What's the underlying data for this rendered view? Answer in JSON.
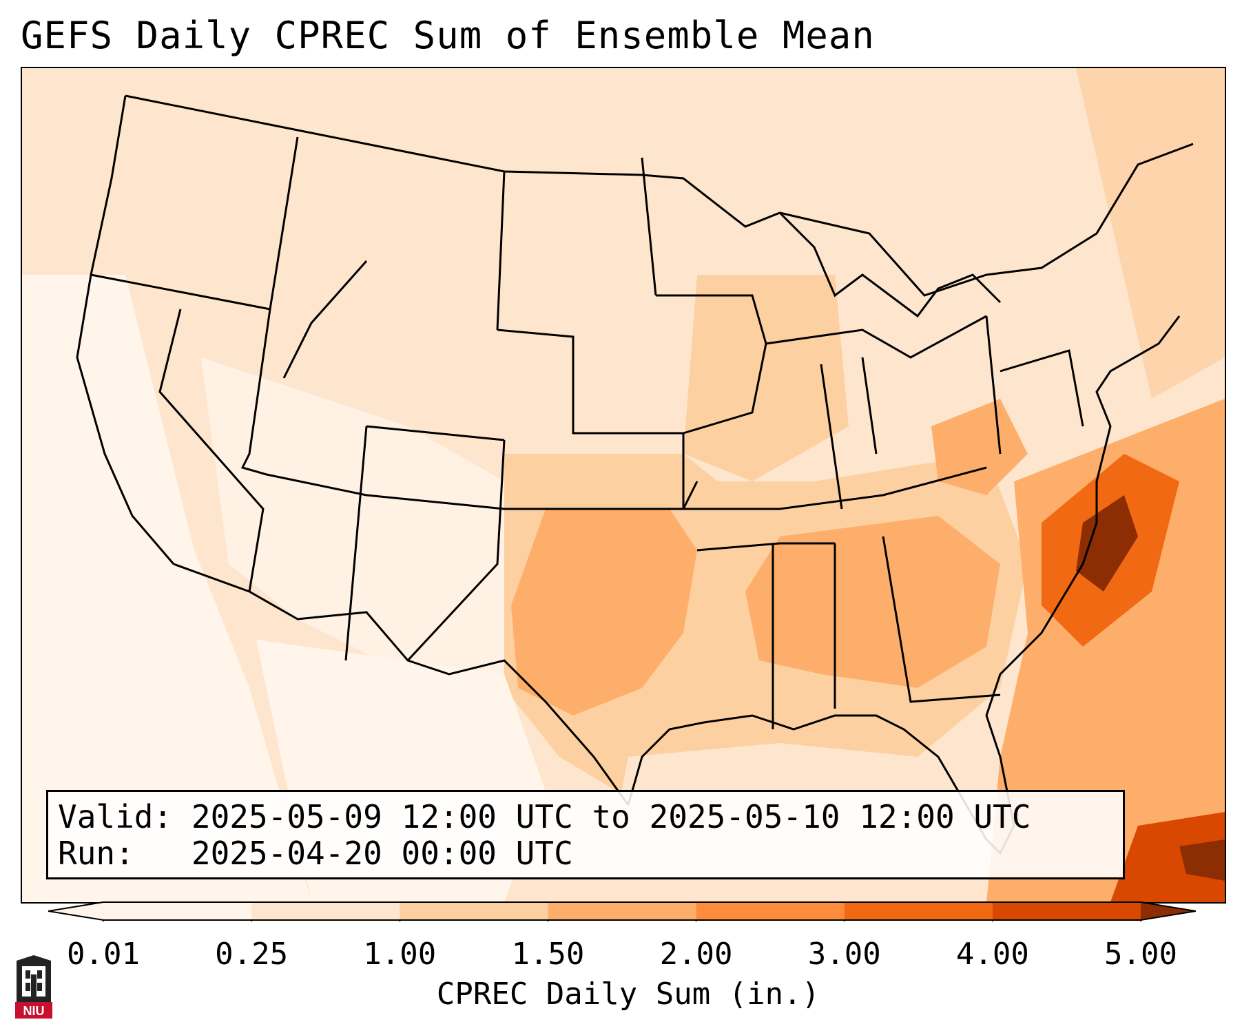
{
  "title": "GEFS Daily CPREC Sum of Ensemble Mean",
  "info": {
    "valid_label": "Valid:",
    "valid_value": "2025-05-09 12:00 UTC to 2025-05-10 12:00 UTC",
    "run_label": "Run:",
    "run_value": "2025-04-20 00:00 UTC"
  },
  "colorbar": {
    "label": "CPREC Daily Sum (in.)",
    "ticks": [
      "0.01",
      "0.25",
      "1.00",
      "1.50",
      "2.00",
      "3.00",
      "4.00",
      "5.00"
    ],
    "colors": [
      "#fff5eb",
      "#fee6ce",
      "#fdd0a2",
      "#fdae6b",
      "#fd8d3c",
      "#f16913",
      "#d94801",
      "#8c2d04"
    ]
  },
  "logo": {
    "text": "NIU",
    "icon": "university-tower-icon"
  },
  "map": {
    "region": "Contiguous United States",
    "projection": "Lambert Conformal"
  }
}
